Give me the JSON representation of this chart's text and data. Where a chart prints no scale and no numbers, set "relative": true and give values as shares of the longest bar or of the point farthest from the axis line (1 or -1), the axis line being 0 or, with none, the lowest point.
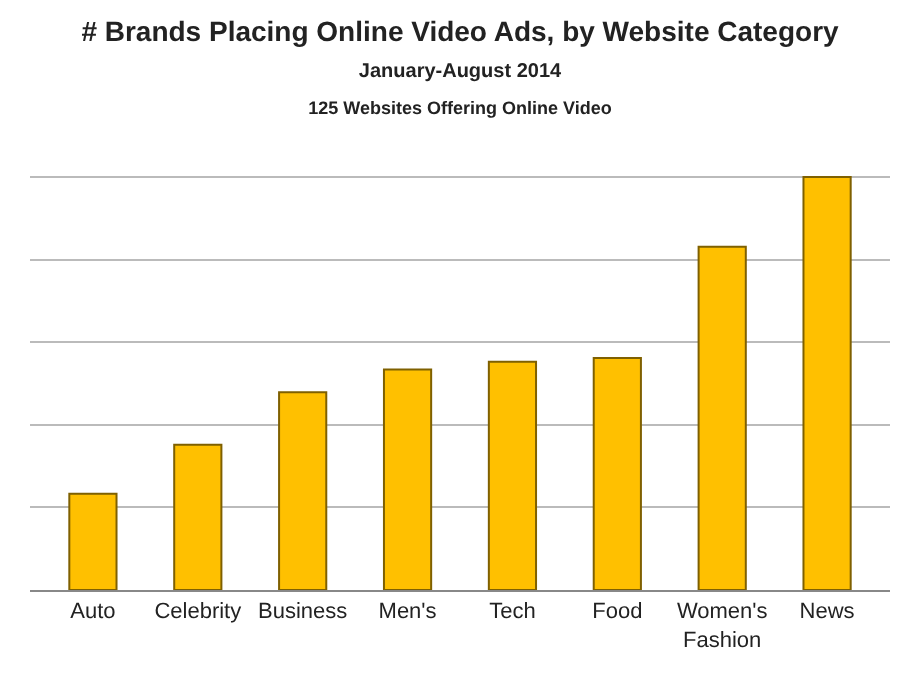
{
  "chart_data": {
    "type": "bar",
    "title": "# Brands Placing Online Video Ads, by Website Category",
    "subtitle": "January-August 2014\n125 Websites Offering Online Video",
    "categories": [
      "Auto",
      "Celebrity",
      "Business",
      "Men's",
      "Tech",
      "Food",
      "Women's Fashion",
      "News"
    ],
    "values": [
      0.233,
      0.352,
      0.479,
      0.534,
      0.553,
      0.562,
      0.831,
      1.0
    ],
    "color": "#ffc000",
    "relative": true,
    "grid": "y"
  }
}
